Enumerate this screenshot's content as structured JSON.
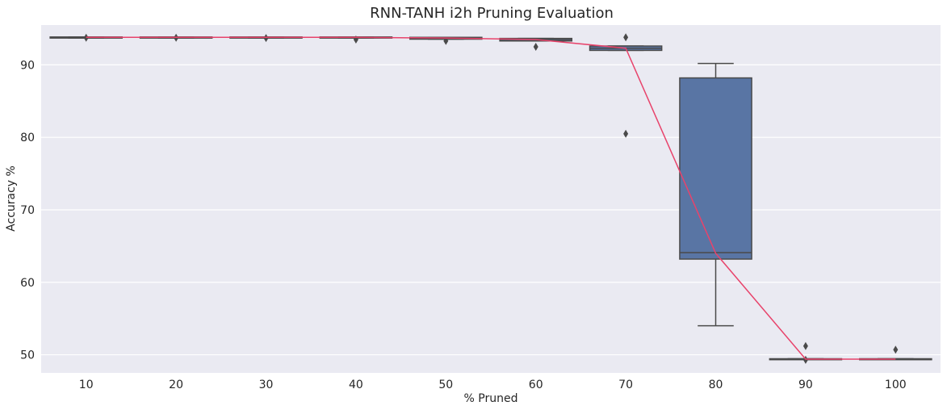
{
  "chart_data": {
    "type": "box",
    "title": "RNN-TANH i2h Pruning Evaluation",
    "xlabel": "% Pruned",
    "ylabel": "Accuracy %",
    "ylim": [
      47.5,
      95.5
    ],
    "yticks": [
      50,
      60,
      70,
      80,
      90
    ],
    "grid": true,
    "categories": [
      "10",
      "20",
      "30",
      "40",
      "50",
      "60",
      "70",
      "80",
      "90",
      "100"
    ],
    "boxes": [
      {
        "q1": 93.7,
        "median": 93.8,
        "q3": 93.85,
        "whisker_low": 93.7,
        "whisker_high": 93.85,
        "outliers": [
          93.75
        ]
      },
      {
        "q1": 93.7,
        "median": 93.8,
        "q3": 93.85,
        "whisker_low": 93.7,
        "whisker_high": 93.85,
        "outliers": [
          93.75
        ]
      },
      {
        "q1": 93.7,
        "median": 93.8,
        "q3": 93.85,
        "whisker_low": 93.7,
        "whisker_high": 93.85,
        "outliers": [
          93.7
        ]
      },
      {
        "q1": 93.7,
        "median": 93.8,
        "q3": 93.85,
        "whisker_low": 93.7,
        "whisker_high": 93.85,
        "outliers": [
          93.5
        ]
      },
      {
        "q1": 93.55,
        "median": 93.7,
        "q3": 93.8,
        "whisker_low": 93.55,
        "whisker_high": 93.8,
        "outliers": [
          93.3
        ]
      },
      {
        "q1": 93.3,
        "median": 93.5,
        "q3": 93.65,
        "whisker_low": 93.3,
        "whisker_high": 93.65,
        "outliers": [
          92.5
        ]
      },
      {
        "q1": 92.0,
        "median": 92.3,
        "q3": 92.6,
        "whisker_low": 92.0,
        "whisker_high": 92.6,
        "outliers": [
          93.8,
          80.5
        ]
      },
      {
        "q1": 63.2,
        "median": 64.1,
        "q3": 88.2,
        "whisker_low": 54.0,
        "whisker_high": 90.2,
        "outliers": []
      },
      {
        "q1": 49.4,
        "median": 49.4,
        "q3": 49.45,
        "whisker_low": 49.4,
        "whisker_high": 49.45,
        "outliers": [
          51.2,
          49.3
        ]
      },
      {
        "q1": 49.4,
        "median": 49.4,
        "q3": 49.45,
        "whisker_low": 49.4,
        "whisker_high": 49.45,
        "outliers": [
          50.7
        ]
      }
    ],
    "mean_line": [
      93.8,
      93.8,
      93.8,
      93.8,
      93.7,
      93.5,
      92.3,
      64.0,
      49.4,
      49.4
    ],
    "colors": {
      "background": "#eaeaf2",
      "grid": "#ffffff",
      "box_fill": "#5975a4",
      "box_edge": "#4a4a4a",
      "mean_line": "#e8436b"
    }
  }
}
